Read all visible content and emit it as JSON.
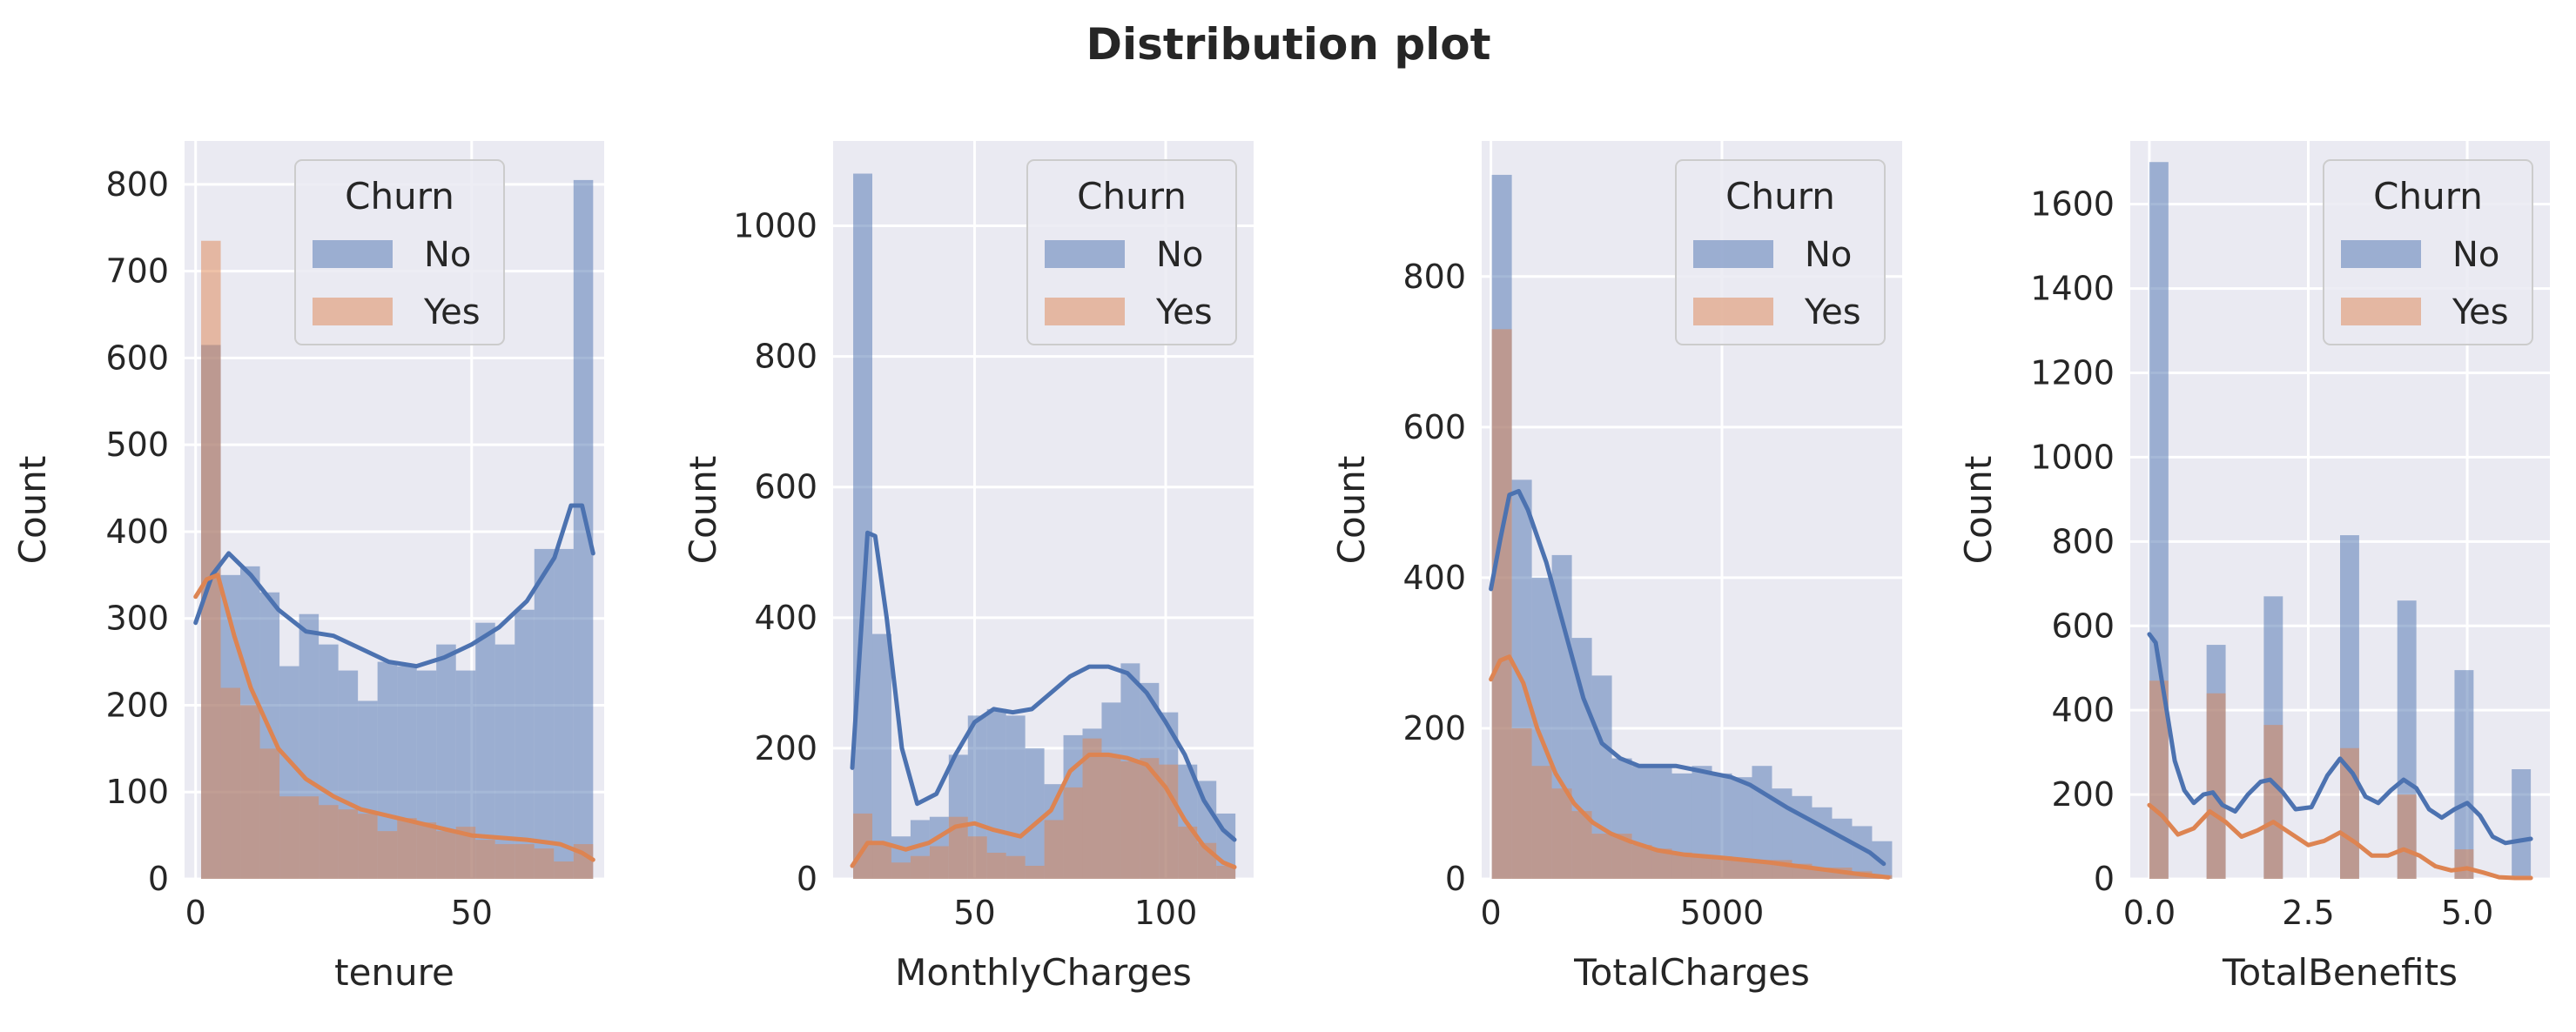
{
  "figure": {
    "title": "Distribution plot"
  },
  "colors": {
    "No": "#4c72b0",
    "Yes": "#dd8452",
    "panel_bg": "#eaeaf2",
    "grid": "#ffffff"
  },
  "chart_data": [
    {
      "type": "histogram",
      "xlabel": "tenure",
      "ylabel": "Count",
      "xlim": [
        -2,
        74
      ],
      "ylim": [
        0,
        850
      ],
      "xticks": [
        0,
        50
      ],
      "yticks": [
        0,
        100,
        200,
        300,
        400,
        500,
        600,
        700,
        800
      ],
      "bin_edges": [
        1,
        4.55,
        8.1,
        11.65,
        15.2,
        18.75,
        22.3,
        25.85,
        29.4,
        32.95,
        36.5,
        40.05,
        43.6,
        47.15,
        50.7,
        54.25,
        57.8,
        61.35,
        64.9,
        68.45,
        72
      ],
      "legend": {
        "title": "Churn",
        "position": "top-center",
        "entries": [
          "No",
          "Yes"
        ]
      },
      "grid": true,
      "series": [
        {
          "name": "No",
          "counts": [
            615,
            350,
            360,
            330,
            245,
            305,
            270,
            240,
            205,
            250,
            245,
            240,
            270,
            240,
            295,
            270,
            310,
            380,
            380,
            805
          ],
          "kde": [
            [
              0,
              295
            ],
            [
              3,
              350
            ],
            [
              6,
              375
            ],
            [
              10,
              350
            ],
            [
              15,
              310
            ],
            [
              20,
              285
            ],
            [
              25,
              280
            ],
            [
              30,
              265
            ],
            [
              35,
              250
            ],
            [
              40,
              245
            ],
            [
              45,
              255
            ],
            [
              50,
              270
            ],
            [
              55,
              290
            ],
            [
              60,
              320
            ],
            [
              65,
              370
            ],
            [
              68,
              430
            ],
            [
              70,
              430
            ],
            [
              72,
              375
            ]
          ]
        },
        {
          "name": "Yes",
          "counts": [
            735,
            220,
            200,
            150,
            95,
            95,
            85,
            80,
            75,
            55,
            70,
            65,
            55,
            60,
            45,
            40,
            40,
            35,
            20,
            40
          ],
          "kde": [
            [
              0,
              325
            ],
            [
              2,
              345
            ],
            [
              4,
              350
            ],
            [
              7,
              280
            ],
            [
              10,
              220
            ],
            [
              15,
              150
            ],
            [
              20,
              115
            ],
            [
              25,
              95
            ],
            [
              30,
              80
            ],
            [
              40,
              65
            ],
            [
              50,
              50
            ],
            [
              60,
              45
            ],
            [
              66,
              40
            ],
            [
              70,
              30
            ],
            [
              72,
              22
            ]
          ]
        }
      ]
    },
    {
      "type": "histogram",
      "xlabel": "MonthlyCharges",
      "ylabel": "Count",
      "xlim": [
        13,
        123
      ],
      "ylim": [
        0,
        1130
      ],
      "xticks": [
        50,
        100
      ],
      "yticks": [
        0,
        200,
        400,
        600,
        800,
        1000
      ],
      "bin_edges": [
        18.25,
        23.25,
        28.25,
        33.25,
        38.25,
        43.25,
        48.25,
        53.25,
        58.25,
        63.25,
        68.25,
        73.25,
        78.25,
        83.25,
        88.25,
        93.25,
        98.25,
        103.25,
        108.25,
        113.25,
        118.25
      ],
      "legend": {
        "title": "Churn",
        "position": "top-right",
        "entries": [
          "No",
          "Yes"
        ]
      },
      "grid": true,
      "series": [
        {
          "name": "No",
          "counts": [
            1080,
            375,
            65,
            90,
            95,
            190,
            250,
            260,
            250,
            200,
            145,
            220,
            230,
            270,
            330,
            300,
            255,
            175,
            150,
            100
          ],
          "kde": [
            [
              18,
              170
            ],
            [
              20,
              350
            ],
            [
              22,
              530
            ],
            [
              24,
              525
            ],
            [
              27,
              400
            ],
            [
              31,
              200
            ],
            [
              35,
              115
            ],
            [
              40,
              130
            ],
            [
              45,
              190
            ],
            [
              50,
              240
            ],
            [
              55,
              260
            ],
            [
              60,
              255
            ],
            [
              65,
              260
            ],
            [
              70,
              285
            ],
            [
              75,
              310
            ],
            [
              80,
              325
            ],
            [
              85,
              325
            ],
            [
              90,
              315
            ],
            [
              95,
              285
            ],
            [
              100,
              240
            ],
            [
              105,
              190
            ],
            [
              110,
              120
            ],
            [
              115,
              75
            ],
            [
              118,
              60
            ]
          ]
        },
        {
          "name": "Yes",
          "counts": [
            100,
            55,
            25,
            35,
            50,
            95,
            65,
            40,
            35,
            20,
            90,
            140,
            215,
            190,
            180,
            185,
            175,
            80,
            55,
            20
          ],
          "kde": [
            [
              18,
              20
            ],
            [
              22,
              55
            ],
            [
              26,
              55
            ],
            [
              32,
              45
            ],
            [
              38,
              55
            ],
            [
              45,
              80
            ],
            [
              50,
              85
            ],
            [
              55,
              75
            ],
            [
              62,
              65
            ],
            [
              70,
              105
            ],
            [
              75,
              165
            ],
            [
              80,
              190
            ],
            [
              85,
              190
            ],
            [
              90,
              185
            ],
            [
              95,
              175
            ],
            [
              100,
              140
            ],
            [
              105,
              90
            ],
            [
              110,
              50
            ],
            [
              115,
              25
            ],
            [
              118,
              18
            ]
          ]
        }
      ]
    },
    {
      "type": "histogram",
      "xlabel": "TotalCharges",
      "ylabel": "Count",
      "xlim": [
        -200,
        8900
      ],
      "ylim": [
        0,
        980
      ],
      "xticks": [
        0,
        5000
      ],
      "yticks": [
        0,
        200,
        400,
        600,
        800
      ],
      "bin_edges": [
        18.8,
        452.0,
        885.1,
        1318.3,
        1751.4,
        2184.6,
        2617.8,
        3050.9,
        3484.1,
        3917.2,
        4350.4,
        4783.6,
        5216.7,
        5649.9,
        6083.0,
        6516.2,
        6949.4,
        7382.5,
        7815.7,
        8248.8,
        8682.0
      ],
      "legend": {
        "title": "Churn",
        "position": "top-right",
        "entries": [
          "No",
          "Yes"
        ]
      },
      "grid": true,
      "series": [
        {
          "name": "No",
          "counts": [
            935,
            530,
            400,
            430,
            320,
            270,
            160,
            150,
            150,
            140,
            150,
            140,
            135,
            150,
            120,
            110,
            95,
            80,
            70,
            50
          ],
          "kde": [
            [
              0,
              385
            ],
            [
              200,
              450
            ],
            [
              400,
              510
            ],
            [
              600,
              515
            ],
            [
              800,
              490
            ],
            [
              1200,
              420
            ],
            [
              1600,
              330
            ],
            [
              2000,
              240
            ],
            [
              2400,
              180
            ],
            [
              2800,
              160
            ],
            [
              3200,
              150
            ],
            [
              3600,
              150
            ],
            [
              4000,
              150
            ],
            [
              4400,
              145
            ],
            [
              4800,
              140
            ],
            [
              5200,
              135
            ],
            [
              5600,
              125
            ],
            [
              6000,
              110
            ],
            [
              6400,
              95
            ],
            [
              7000,
              75
            ],
            [
              7600,
              55
            ],
            [
              8200,
              35
            ],
            [
              8500,
              20
            ]
          ]
        },
        {
          "name": "Yes",
          "counts": [
            730,
            200,
            150,
            120,
            90,
            60,
            60,
            45,
            40,
            35,
            30,
            30,
            25,
            25,
            25,
            20,
            15,
            15,
            10,
            5
          ],
          "kde": [
            [
              0,
              265
            ],
            [
              200,
              290
            ],
            [
              400,
              295
            ],
            [
              700,
              260
            ],
            [
              1000,
              200
            ],
            [
              1400,
              140
            ],
            [
              1800,
              100
            ],
            [
              2200,
              75
            ],
            [
              2600,
              60
            ],
            [
              3000,
              50
            ],
            [
              3600,
              38
            ],
            [
              4200,
              32
            ],
            [
              5000,
              28
            ],
            [
              6000,
              22
            ],
            [
              7000,
              14
            ],
            [
              8000,
              6
            ],
            [
              8600,
              2
            ]
          ]
        }
      ]
    },
    {
      "type": "histogram",
      "xlabel": "TotalBenefits",
      "ylabel": "Count",
      "xlim": [
        -0.3,
        6.3
      ],
      "ylim": [
        0,
        1750
      ],
      "xticks": [
        0.0,
        2.5,
        5.0
      ],
      "xtick_labels": [
        "0.0",
        "2.5",
        "5.0"
      ],
      "yticks": [
        0,
        200,
        400,
        600,
        800,
        1000,
        1200,
        1400,
        1600
      ],
      "bin_edges": [
        0,
        0.3,
        0.6,
        0.9,
        1.2,
        1.5,
        1.8,
        2.1,
        2.4,
        2.7,
        3.0,
        3.3,
        3.6,
        3.9,
        4.2,
        4.5,
        4.8,
        5.1,
        5.4,
        5.7,
        6.0
      ],
      "legend": {
        "title": "Churn",
        "position": "top-right",
        "entries": [
          "No",
          "Yes"
        ]
      },
      "grid": true,
      "series": [
        {
          "name": "No",
          "counts": [
            1700,
            0,
            0,
            555,
            0,
            0,
            670,
            0,
            0,
            0,
            815,
            0,
            0,
            660,
            0,
            0,
            495,
            0,
            0,
            260
          ],
          "kde": [
            [
              0,
              580
            ],
            [
              0.1,
              560
            ],
            [
              0.25,
              420
            ],
            [
              0.4,
              280
            ],
            [
              0.55,
              210
            ],
            [
              0.7,
              180
            ],
            [
              0.85,
              200
            ],
            [
              1.0,
              205
            ],
            [
              1.15,
              175
            ],
            [
              1.35,
              160
            ],
            [
              1.55,
              200
            ],
            [
              1.75,
              230
            ],
            [
              1.9,
              235
            ],
            [
              2.1,
              205
            ],
            [
              2.3,
              165
            ],
            [
              2.55,
              170
            ],
            [
              2.8,
              245
            ],
            [
              3.0,
              285
            ],
            [
              3.2,
              250
            ],
            [
              3.4,
              195
            ],
            [
              3.6,
              180
            ],
            [
              3.8,
              210
            ],
            [
              4.0,
              235
            ],
            [
              4.2,
              215
            ],
            [
              4.4,
              165
            ],
            [
              4.6,
              145
            ],
            [
              4.8,
              165
            ],
            [
              5.0,
              180
            ],
            [
              5.2,
              150
            ],
            [
              5.4,
              100
            ],
            [
              5.6,
              85
            ],
            [
              5.8,
              90
            ],
            [
              6.0,
              95
            ]
          ]
        },
        {
          "name": "Yes",
          "counts": [
            470,
            0,
            0,
            440,
            0,
            0,
            365,
            0,
            0,
            0,
            310,
            0,
            0,
            200,
            0,
            0,
            70,
            0,
            0,
            5
          ],
          "kde": [
            [
              0,
              175
            ],
            [
              0.2,
              150
            ],
            [
              0.45,
              105
            ],
            [
              0.7,
              120
            ],
            [
              0.95,
              160
            ],
            [
              1.2,
              135
            ],
            [
              1.45,
              100
            ],
            [
              1.7,
              115
            ],
            [
              1.95,
              135
            ],
            [
              2.2,
              110
            ],
            [
              2.5,
              80
            ],
            [
              2.75,
              90
            ],
            [
              3.0,
              110
            ],
            [
              3.25,
              85
            ],
            [
              3.5,
              55
            ],
            [
              3.75,
              55
            ],
            [
              4.0,
              70
            ],
            [
              4.25,
              55
            ],
            [
              4.5,
              30
            ],
            [
              4.75,
              20
            ],
            [
              5.0,
              25
            ],
            [
              5.25,
              15
            ],
            [
              5.5,
              4
            ],
            [
              5.75,
              2
            ],
            [
              6.0,
              2
            ]
          ]
        }
      ]
    }
  ]
}
